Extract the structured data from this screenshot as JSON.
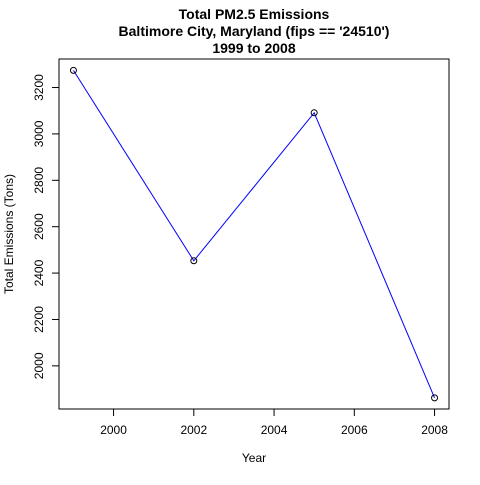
{
  "chart_data": {
    "type": "line",
    "title": [
      "Total PM2.5 Emissions",
      "Baltimore City, Maryland (fips == '24510')",
      "1999 to 2008"
    ],
    "xlabel": "Year",
    "ylabel": "Total Emissions (Tons)",
    "x": [
      1999,
      2002,
      2005,
      2008
    ],
    "series": [
      {
        "values": [
          3274,
          2453,
          3091,
          1862
        ],
        "color": "#0000ff",
        "marker": "open-circle"
      }
    ],
    "xlim": [
      1998.64,
      2008.36
    ],
    "ylim": [
      1814,
      3323
    ],
    "xticks": [
      "2000",
      "2002",
      "2004",
      "2006",
      "2008"
    ],
    "yticks": [
      "2000",
      "2200",
      "2400",
      "2600",
      "2800",
      "3000",
      "3200"
    ],
    "grid": false,
    "legend": "none"
  }
}
